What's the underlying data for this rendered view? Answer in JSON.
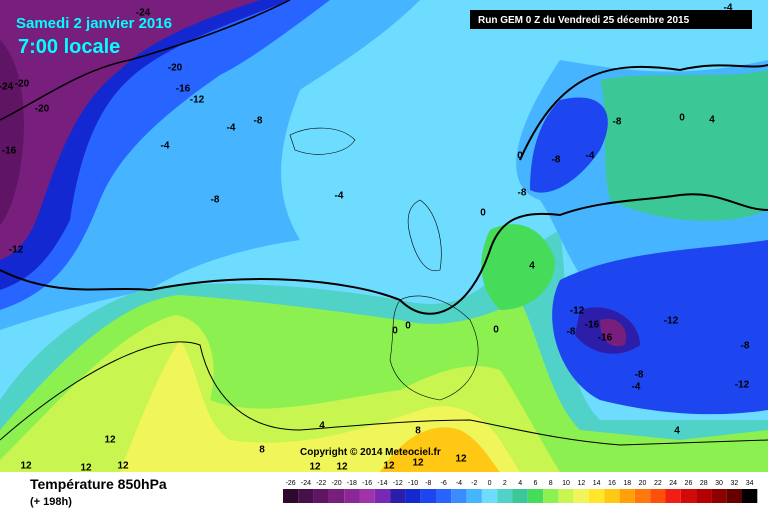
{
  "header": {
    "date": "Samedi 2 janvier 2016",
    "time": "7:00 locale",
    "run": "Run GEM 0 Z du Vendredi 25 décembre 2015"
  },
  "footer": {
    "title": "Température 850hPa",
    "lead": "(+ 198h)",
    "copyright": "Copyright © 2014 Meteociel.fr"
  },
  "contour_labels": [
    -24,
    -24,
    -20,
    -20,
    -16,
    -12,
    -20,
    -16,
    -12,
    -4,
    -8,
    -4,
    -8,
    -4,
    -8,
    -8,
    0,
    -4,
    -8,
    0,
    4,
    0,
    4,
    -12,
    -8,
    -16,
    -16,
    -12,
    -8,
    -12,
    -8,
    -4,
    0,
    0,
    0,
    4,
    8,
    8,
    4,
    12,
    12,
    12,
    12,
    12,
    12,
    12,
    12,
    12,
    -4
  ],
  "legend": {
    "ticks": [
      -26,
      -24,
      -22,
      -20,
      -18,
      -16,
      -14,
      -12,
      -10,
      -8,
      -6,
      -4,
      -2,
      0,
      2,
      4,
      6,
      8,
      10,
      12,
      14,
      16,
      18,
      20,
      22,
      24,
      26,
      28,
      30,
      32,
      34
    ],
    "colors": [
      "#2d0a2d",
      "#46104b",
      "#5f1464",
      "#781e7d",
      "#8c2896",
      "#a032aa",
      "#7828b4",
      "#2d1eaa",
      "#1428d2",
      "#1e46f0",
      "#2864ff",
      "#3c8cff",
      "#46b4ff",
      "#6edcff",
      "#50d2c8",
      "#3cc896",
      "#46dc5a",
      "#8cf050",
      "#c8f550",
      "#f0f55a",
      "#ffe628",
      "#ffc814",
      "#ffa00a",
      "#ff780a",
      "#ff500a",
      "#f01e14",
      "#d20a0a",
      "#b40000",
      "#8c0000",
      "#640000",
      "#000000"
    ]
  }
}
